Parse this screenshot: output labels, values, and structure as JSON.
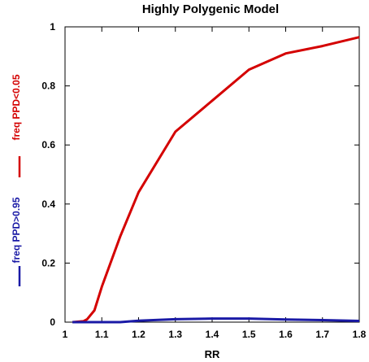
{
  "chart_data": {
    "type": "line",
    "title": "Highly Polygenic Model",
    "xlabel": "RR",
    "ylabel": "",
    "xlim": [
      1,
      1.8
    ],
    "ylim": [
      0,
      1
    ],
    "x_ticks": [
      "1",
      "1.1",
      "1.2",
      "1.3",
      "1.4",
      "1.5",
      "1.6",
      "1.7",
      "1.8"
    ],
    "y_ticks": [
      "0",
      "0.2",
      "0.4",
      "0.6",
      "0.8",
      "1"
    ],
    "grid": false,
    "legend_position": "left-outside-vertical",
    "series": [
      {
        "name": "freq PPD<0.05",
        "color": "#d40000",
        "x": [
          1.02,
          1.05,
          1.06,
          1.08,
          1.1,
          1.15,
          1.2,
          1.3,
          1.4,
          1.5,
          1.6,
          1.7,
          1.8
        ],
        "values": [
          0,
          0.003,
          0.01,
          0.04,
          0.12,
          0.29,
          0.44,
          0.645,
          0.75,
          0.855,
          0.91,
          0.935,
          0.965
        ]
      },
      {
        "name": "freq PPD>0.95",
        "color": "#1a1aa6",
        "x": [
          1.02,
          1.1,
          1.15,
          1.2,
          1.3,
          1.4,
          1.5,
          1.6,
          1.7,
          1.8
        ],
        "values": [
          0,
          0,
          0,
          0.005,
          0.01,
          0.012,
          0.012,
          0.009,
          0.007,
          0.004
        ]
      }
    ]
  }
}
